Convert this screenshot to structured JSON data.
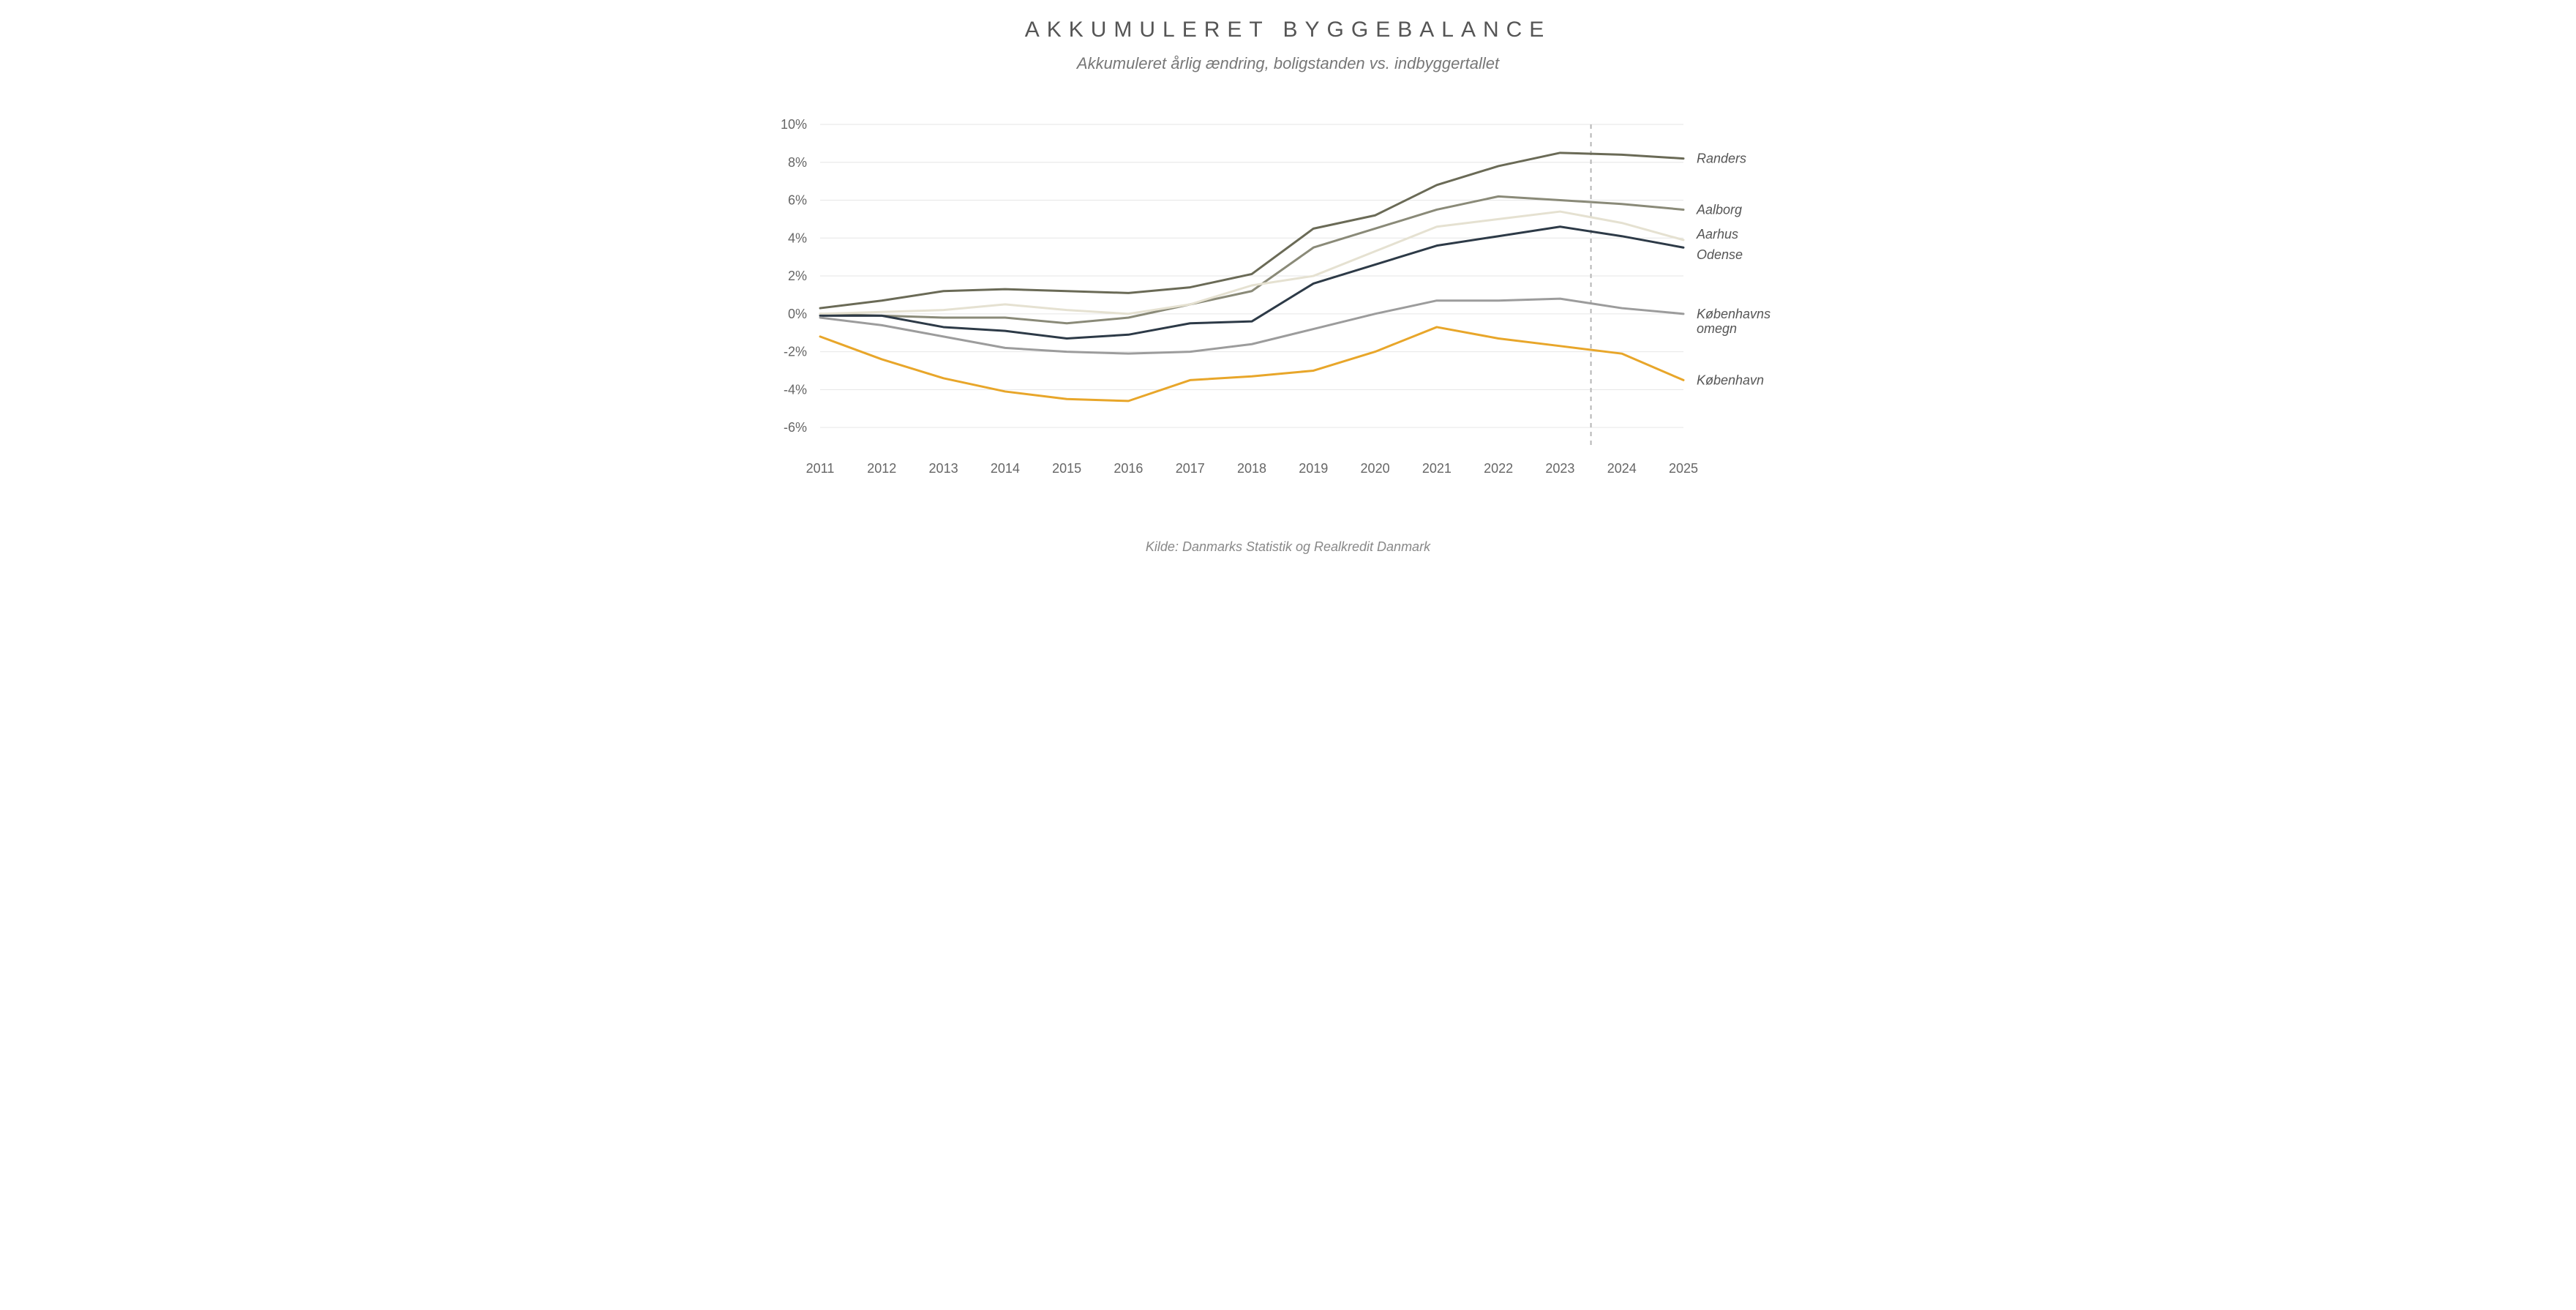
{
  "title": "AKKUMULERET BYGGEBALANCE",
  "subtitle": "Akkumuleret årlig ændring, boligstanden vs. indbyggertallet",
  "source": "Kilde: Danmarks Statistik og Realkredit Danmark",
  "chart": {
    "type": "line",
    "background_color": "#ffffff",
    "grid_color": "#e6e6e6",
    "axis_text_color": "#666666",
    "axis_font_size": 18,
    "label_font_size": 18,
    "title_font_size": 30,
    "subtitle_font_size": 22,
    "x": {
      "categories": [
        "2011",
        "2012",
        "2013",
        "2014",
        "2015",
        "2016",
        "2017",
        "2018",
        "2019",
        "2020",
        "2021",
        "2022",
        "2023",
        "2024",
        "2025"
      ]
    },
    "y": {
      "min": -7,
      "max": 10,
      "tick_step": 2,
      "ticks": [
        -6,
        -4,
        -2,
        0,
        2,
        4,
        6,
        8,
        10
      ],
      "format": "%"
    },
    "forecast_divider_after_index": 12,
    "forecast_divider_color": "#b5b5b5",
    "forecast_divider_dash": "6,6",
    "series": [
      {
        "name": "Randers",
        "color": "#6a6a56",
        "width": 3,
        "label_offset_y": 0,
        "values": [
          0.3,
          0.7,
          1.2,
          1.3,
          1.2,
          1.1,
          1.4,
          2.1,
          4.5,
          5.2,
          6.8,
          7.8,
          8.5,
          8.4,
          8.2
        ]
      },
      {
        "name": "Aalborg",
        "color": "#8a8a78",
        "width": 3,
        "label_offset_y": 0,
        "values": [
          0.0,
          -0.1,
          -0.2,
          -0.2,
          -0.5,
          -0.2,
          0.5,
          1.2,
          3.5,
          4.5,
          5.5,
          6.2,
          6.0,
          5.8,
          5.5
        ]
      },
      {
        "name": "Aarhus",
        "color": "#e5e1d1",
        "width": 3,
        "label_offset_y": -8,
        "values": [
          0.0,
          0.1,
          0.2,
          0.5,
          0.2,
          0.0,
          0.5,
          1.5,
          2.0,
          3.3,
          4.6,
          5.0,
          5.4,
          4.8,
          3.9
        ]
      },
      {
        "name": "Odense",
        "color": "#2d3a47",
        "width": 3,
        "label_offset_y": 10,
        "values": [
          -0.1,
          -0.1,
          -0.7,
          -0.9,
          -1.3,
          -1.1,
          -0.5,
          -0.4,
          1.6,
          2.6,
          3.6,
          4.1,
          4.6,
          4.1,
          3.5
        ]
      },
      {
        "name": "Københavns omegn",
        "color": "#9c9c9c",
        "width": 3,
        "label_offset_y": 0,
        "label_lines": [
          "Københavns",
          "omegn"
        ],
        "values": [
          -0.2,
          -0.6,
          -1.2,
          -1.8,
          -2.0,
          -2.1,
          -2.0,
          -1.6,
          -0.8,
          0.0,
          0.7,
          0.7,
          0.8,
          0.3,
          0.0
        ]
      },
      {
        "name": "København",
        "color": "#e8a62a",
        "width": 3,
        "label_offset_y": 0,
        "values": [
          -1.2,
          -2.4,
          -3.4,
          -4.1,
          -4.5,
          -4.6,
          -3.5,
          -3.3,
          -3.0,
          -2.0,
          -0.7,
          -1.3,
          -1.7,
          -2.1,
          -3.5
        ]
      }
    ]
  }
}
